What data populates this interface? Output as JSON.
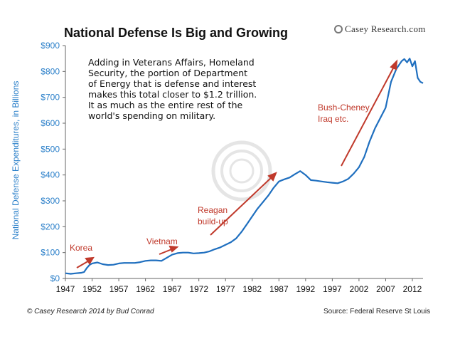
{
  "brand": "Casey Research.com",
  "footer": {
    "copyright": "© Casey Research 2014 by Bud Conrad",
    "source": "Source: Federal Reserve St Louis"
  },
  "chart_data": {
    "type": "line",
    "title": "National Defense Is Big and Growing",
    "xlabel": "",
    "ylabel": "National Defense Expenditures, in Billions",
    "xlim": [
      1947,
      2014
    ],
    "ylim": [
      0,
      900
    ],
    "y_ticks": [
      "$0",
      "$100",
      "$200",
      "$300",
      "$400",
      "$500",
      "$600",
      "$700",
      "$800",
      "$900"
    ],
    "x_ticks": [
      "1947",
      "1952",
      "1957",
      "1962",
      "1967",
      "1972",
      "1977",
      "1982",
      "1987",
      "1992",
      "1997",
      "2002",
      "2007",
      "2012"
    ],
    "grid": false,
    "line_color": "#1f6fbf",
    "series": [
      {
        "x": [
          1947,
          1948,
          1949,
          1950,
          1950.5,
          1951,
          1951.5,
          1952,
          1953,
          1954,
          1955,
          1956,
          1957,
          1958,
          1959,
          1960,
          1961,
          1962,
          1963,
          1964,
          1965,
          1966,
          1967,
          1968,
          1969,
          1970,
          1971,
          1972,
          1973,
          1974,
          1975,
          1976,
          1977,
          1978,
          1979,
          1980,
          1981,
          1982,
          1983,
          1984,
          1985,
          1986,
          1987,
          1988,
          1989,
          1990,
          1991,
          1992,
          1993,
          1994,
          1995,
          1996,
          1997,
          1998,
          1999,
          2000,
          2001,
          2002,
          2003,
          2004,
          2005,
          2006,
          2007,
          2008,
          2009,
          2010,
          2010.5,
          2011,
          2011.5,
          2012,
          2012.5,
          2013,
          2013.5,
          2014
        ],
        "y": [
          20,
          18,
          20,
          22,
          25,
          40,
          52,
          58,
          62,
          55,
          52,
          53,
          58,
          60,
          60,
          60,
          63,
          68,
          70,
          70,
          68,
          80,
          92,
          98,
          100,
          100,
          97,
          98,
          100,
          105,
          113,
          120,
          130,
          140,
          155,
          180,
          210,
          240,
          270,
          295,
          320,
          350,
          375,
          383,
          390,
          403,
          415,
          400,
          380,
          378,
          375,
          372,
          370,
          368,
          375,
          385,
          405,
          430,
          470,
          530,
          580,
          620,
          660,
          760,
          810,
          840,
          848,
          835,
          850,
          820,
          840,
          775,
          760,
          755
        ]
      }
    ],
    "annotations": {
      "note": "Adding in Veterans Affairs, Homeland Security, the portion of Department of Energy that is defense and interest makes this total closer to $1.2 trillion. It as much as the entire rest of the world's spending on military.",
      "korea": "Korea",
      "vietnam": "Vietnam",
      "reagan": "Reagan\nbuild-up",
      "bush": "Bush-Cheney\nIraq etc."
    },
    "annotation_color": "#c0392b"
  }
}
